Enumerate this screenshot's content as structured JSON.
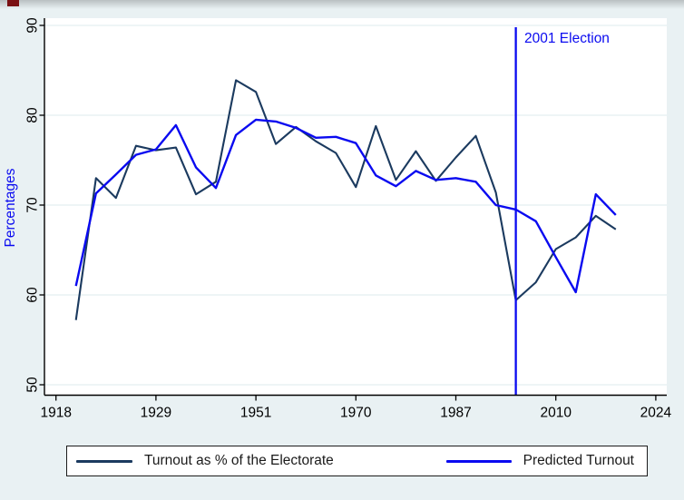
{
  "page": {
    "background_color": "#e9f1f3",
    "corner_mark_color": "#7a1013"
  },
  "chart_data": {
    "type": "line",
    "title": "",
    "xlabel": "",
    "ylabel": "Percentages",
    "x_categories": [
      "1918",
      "1922",
      "1923",
      "1924",
      "1929",
      "1931",
      "1935",
      "1945",
      "1950",
      "1951",
      "1955",
      "1959",
      "1964",
      "1966",
      "1970",
      "1974 Feb",
      "1974 Oct",
      "1979",
      "1983",
      "1987",
      "1992",
      "1997",
      "2001",
      "2005",
      "2010",
      "2015",
      "2017",
      "2019"
    ],
    "series": [
      {
        "name": "Turnout as % of the Electorate",
        "color": "#1b3a5f",
        "values": [
          57.2,
          73.0,
          70.8,
          76.6,
          76.1,
          76.4,
          71.2,
          72.6,
          83.9,
          82.6,
          76.8,
          78.7,
          77.1,
          75.8,
          72.0,
          78.8,
          72.8,
          76.0,
          72.7,
          75.3,
          77.7,
          71.4,
          59.4,
          61.4,
          65.1,
          66.4,
          68.8,
          67.3
        ]
      },
      {
        "name": "Predicted Turnout",
        "color": "#0a0af0",
        "values": [
          61.0,
          71.3,
          73.4,
          75.6,
          76.2,
          78.9,
          74.2,
          71.9,
          77.8,
          79.5,
          79.3,
          78.6,
          77.5,
          77.6,
          76.9,
          73.3,
          72.1,
          73.8,
          72.8,
          73.0,
          72.6,
          70.0,
          69.5,
          68.2,
          64.2,
          60.3,
          71.2,
          68.9
        ]
      }
    ],
    "x_tick_labels": [
      "1918",
      "1929",
      "1951",
      "1970",
      "1987",
      "2010",
      "2024"
    ],
    "x_tick_positions": [
      0,
      5,
      10,
      15,
      20,
      25,
      30
    ],
    "y_ticks": [
      50,
      60,
      70,
      80,
      90
    ],
    "ylim": [
      48.8,
      90.9
    ],
    "grid": "horizontal",
    "gridline_color": "#dcebed",
    "axis_color": "#000000",
    "legend_position": "bottom",
    "annotation": {
      "vline_category": "2001",
      "vline_scale_position": 23,
      "label": "2001 Election",
      "color": "#0a0af0"
    }
  },
  "legend": {
    "items": [
      {
        "label": "Turnout as % of the Electorate",
        "color": "#1b3a5f"
      },
      {
        "label": "Predicted Turnout",
        "color": "#0a0af0"
      }
    ]
  }
}
